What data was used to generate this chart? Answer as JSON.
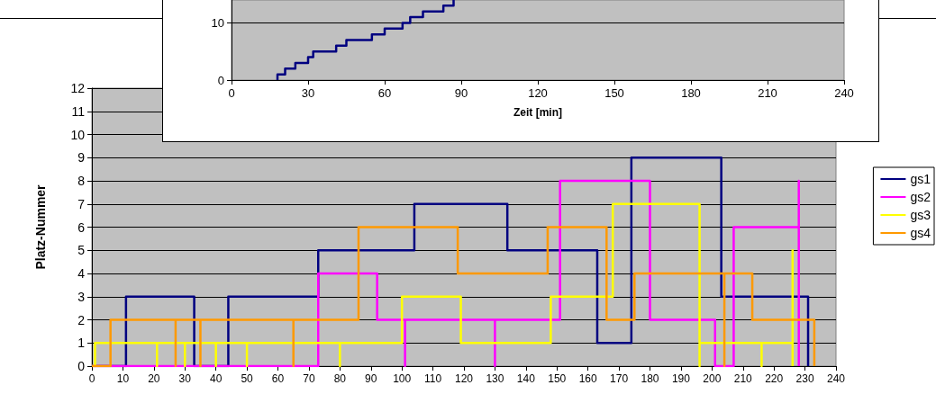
{
  "chart_data": [
    {
      "type": "step",
      "xlabel": "Zeit [min]",
      "x": [
        18,
        18,
        21,
        25,
        30,
        32,
        41,
        45,
        55,
        60,
        67,
        70,
        75,
        83,
        87
      ],
      "series": [
        {
          "color": "#000080",
          "values": [
            0,
            1,
            2,
            3,
            4,
            5,
            6,
            7,
            8,
            9,
            10,
            11,
            12,
            13,
            14
          ]
        }
      ],
      "xlim": [
        0,
        240
      ],
      "xticks": [
        0,
        30,
        60,
        90,
        120,
        150,
        180,
        210,
        240
      ],
      "ylim": [
        0,
        14
      ],
      "yticks": [
        0,
        10
      ],
      "grid": "y",
      "legend": false
    },
    {
      "type": "step",
      "ylabel": "Platz-Nummer",
      "series": [
        {
          "name": "gs1",
          "color": "#000080",
          "x": [
            0,
            11,
            33,
            44,
            73,
            104,
            134,
            163,
            174,
            203,
            231
          ],
          "values": [
            0,
            3,
            0,
            3,
            5,
            7,
            5,
            1,
            9,
            3,
            0
          ]
        },
        {
          "name": "gs2",
          "color": "#ff00ff",
          "x": [
            0,
            73,
            92,
            101,
            101,
            130,
            130,
            151,
            180,
            201,
            207,
            228,
            228
          ],
          "values": [
            0,
            4,
            2,
            0,
            2,
            0,
            2,
            8,
            2,
            0,
            6,
            8,
            0
          ]
        },
        {
          "name": "gs3",
          "color": "#ffff00",
          "x": [
            0,
            1,
            21,
            21,
            30,
            30,
            40,
            40,
            50,
            50,
            80,
            80,
            100,
            119,
            148,
            168,
            196,
            196,
            216,
            216,
            226,
            226
          ],
          "values": [
            0,
            1,
            0,
            1,
            0,
            1,
            0,
            1,
            0,
            1,
            0,
            1,
            3,
            1,
            3,
            7,
            0,
            1,
            0,
            1,
            5,
            0
          ]
        },
        {
          "name": "gs4",
          "color": "#ff9900",
          "x": [
            0,
            6,
            27,
            27,
            35,
            35,
            65,
            65,
            86,
            118,
            147,
            166,
            175,
            204,
            204,
            213,
            233
          ],
          "values": [
            0,
            2,
            0,
            2,
            0,
            2,
            0,
            2,
            6,
            4,
            6,
            2,
            4,
            0,
            4,
            2,
            0
          ]
        }
      ],
      "xlim": [
        0,
        240
      ],
      "xticks": [
        0,
        10,
        20,
        30,
        40,
        50,
        60,
        70,
        80,
        90,
        100,
        110,
        120,
        130,
        140,
        150,
        160,
        170,
        180,
        190,
        200,
        210,
        220,
        230,
        240
      ],
      "ylim": [
        0,
        12
      ],
      "yticks": [
        0,
        1,
        2,
        3,
        4,
        5,
        6,
        7,
        8,
        9,
        10,
        11,
        12
      ],
      "grid": "y",
      "legend": "right"
    }
  ]
}
